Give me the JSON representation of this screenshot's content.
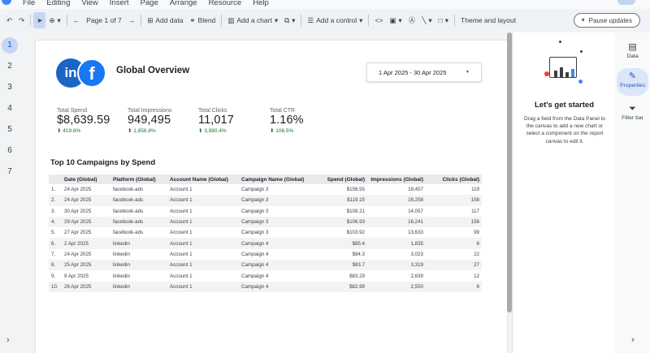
{
  "menu": [
    "File",
    "Editing",
    "View",
    "Insert",
    "Page",
    "Arrange",
    "Resource",
    "Help"
  ],
  "toolbar": {
    "page_indicator": "Page 1 of 7",
    "add_data": "Add data",
    "blend": "Blend",
    "add_chart": "Add a chart",
    "add_control": "Add a control",
    "theme_layout": "Theme and layout",
    "pause_updates": "Pause updates"
  },
  "pages": [
    "1",
    "2",
    "3",
    "4",
    "5",
    "6",
    "7"
  ],
  "report": {
    "title": "Global Overview",
    "date_range": "1 Apr 2025 - 30 Apr 2025",
    "scorecards": [
      {
        "label": "Total Spend",
        "value": "$8,639.59",
        "change": "419.8%"
      },
      {
        "label": "Total Impressions",
        "value": "949,495",
        "change": "1,856.8%"
      },
      {
        "label": "Total Clicks",
        "value": "11,017",
        "change": "3,980.4%"
      },
      {
        "label": "Total CTR",
        "value": "1.16%",
        "change": "108.5%"
      }
    ],
    "table_title": "Top 10 Campaigns by Spend",
    "columns": [
      "Date (Global)",
      "Platform (Global)",
      "Account Name (Global)",
      "Campaign Name (Global)",
      "Spend (Global)",
      "Impressions (Global)",
      "Clicks (Global)"
    ],
    "rows": [
      [
        "1.",
        "24 Apr 2025",
        "facebook-ads",
        "Account 1",
        "Campaign 3",
        "$156.55",
        "18,457",
        "119"
      ],
      [
        "2.",
        "24 Apr 2025",
        "facebook-ads",
        "Account 1",
        "Campaign 3",
        "$119.15",
        "16,258",
        "158"
      ],
      [
        "3.",
        "30 Apr 2025",
        "facebook-ads",
        "Account 1",
        "Campaign 3",
        "$108.21",
        "14,057",
        "117"
      ],
      [
        "4.",
        "29 Apr 2025",
        "facebook-ads",
        "Account 1",
        "Campaign 3",
        "$106.93",
        "16,241",
        "156"
      ],
      [
        "5.",
        "27 Apr 2025",
        "facebook-ads",
        "Account 1",
        "Campaign 3",
        "$103.92",
        "13,633",
        "99"
      ],
      [
        "6.",
        "2 Apr 2025",
        "linkedin",
        "Account 1",
        "Campaign 4",
        "$85.4",
        "1,835",
        "6"
      ],
      [
        "7.",
        "24 Apr 2025",
        "linkedin",
        "Account 1",
        "Campaign 4",
        "$84.3",
        "3,023",
        "22"
      ],
      [
        "8.",
        "25 Apr 2025",
        "linkedin",
        "Account 1",
        "Campaign 4",
        "$83.7",
        "3,319",
        "27"
      ],
      [
        "9.",
        "9 Apr 2025",
        "linkedin",
        "Account 1",
        "Campaign 4",
        "$83.29",
        "2,639",
        "12"
      ],
      [
        "10.",
        "26 Apr 2025",
        "linkedin",
        "Account 1",
        "Campaign 4",
        "$82.99",
        "2,550",
        "6"
      ]
    ]
  },
  "right_panel": {
    "heading": "Let's get started",
    "description": "Drag a field from the Data Panel to the canvas to add a new chart or select a component on the report canvas to edit it."
  },
  "side_tabs": {
    "data": "Data",
    "properties": "Properties",
    "filter_bar": "Filter bar"
  },
  "colors": {
    "accent": "#1a56c4",
    "selected_bg": "#c5d7f5",
    "positive": "#137333",
    "linkedin": "#1a65c5",
    "facebook": "#1877f2"
  }
}
